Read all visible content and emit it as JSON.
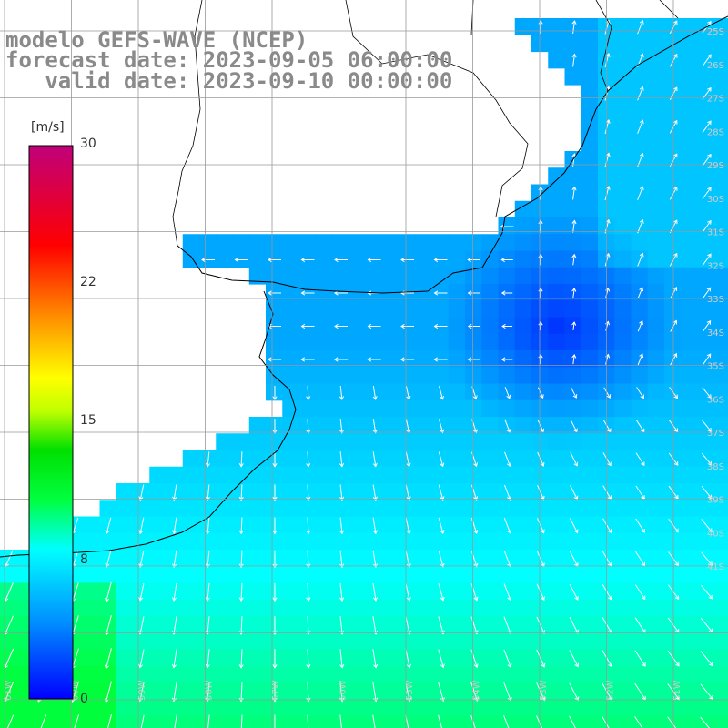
{
  "title": {
    "line1": "modelo GEFS-WAVE (NCEP)",
    "line2": "forecast date: 2023-09-05 06:00:00",
    "line3": "   valid date: 2023-09-10 00:00:00"
  },
  "colorbar": {
    "unit": "[m/s]",
    "ticks": [
      "30",
      "22",
      "15",
      "8",
      "0"
    ],
    "range": [
      0,
      30
    ],
    "colors": [
      "#0000ff",
      "#00c8ff",
      "#00ffff",
      "#00ff00",
      "#ffff00",
      "#ff9900",
      "#ff0000",
      "#c0007a"
    ]
  },
  "map": {
    "land_color": "#ffffff",
    "grid_color": "#999999",
    "coast_color": "#000000",
    "lon_labels": [
      "61W",
      "60W",
      "59W",
      "58W",
      "57W",
      "56W",
      "55W",
      "54W",
      "53W",
      "52W",
      "51W"
    ],
    "lat_labels": [
      "25S",
      "26S",
      "27S",
      "28S",
      "29S",
      "30S",
      "31S",
      "32S",
      "33S",
      "34S",
      "35S",
      "36S",
      "37S",
      "38S",
      "39S",
      "40S",
      "41S"
    ],
    "field": "wind speed and direction",
    "shown_range_ms": [
      2,
      10
    ]
  }
}
